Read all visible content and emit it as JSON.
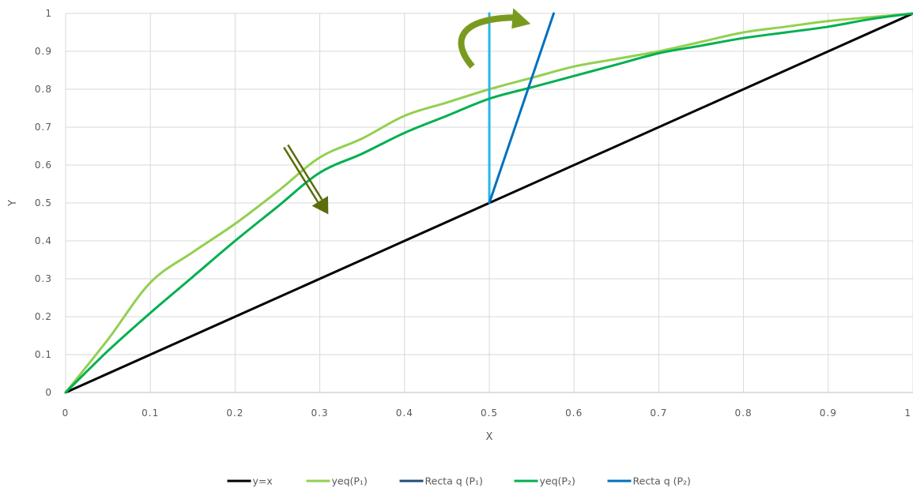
{
  "chart_data": {
    "type": "line",
    "title": "",
    "xlabel": "X",
    "ylabel": "Y",
    "xlim": [
      0,
      1
    ],
    "ylim": [
      0,
      1
    ],
    "x_ticks": [
      "0",
      "0.1",
      "0.2",
      "0.3",
      "0.4",
      "0.5",
      "0.6",
      "0.7",
      "0.8",
      "0.9",
      "1"
    ],
    "y_ticks": [
      "0",
      "0.1",
      "0.2",
      "0.3",
      "0.4",
      "0.5",
      "0.6",
      "0.7",
      "0.8",
      "0.9",
      "1"
    ],
    "grid": true,
    "legend_position": "bottom",
    "series": [
      {
        "name": "y=x",
        "color": "#000000",
        "x": [
          0,
          1
        ],
        "y": [
          0,
          1
        ]
      },
      {
        "name": "yeq(P1)",
        "color": "#92d050",
        "x": [
          0,
          0.05,
          0.1,
          0.15,
          0.2,
          0.25,
          0.3,
          0.35,
          0.4,
          0.45,
          0.5,
          0.55,
          0.6,
          0.65,
          0.7,
          0.75,
          0.8,
          0.85,
          0.9,
          0.95,
          1.0
        ],
        "y": [
          0,
          0.14,
          0.29,
          0.37,
          0.445,
          0.53,
          0.62,
          0.67,
          0.73,
          0.765,
          0.8,
          0.83,
          0.86,
          0.88,
          0.9,
          0.925,
          0.95,
          0.965,
          0.98,
          0.99,
          1.0
        ]
      },
      {
        "name": "Recta q (P1)",
        "color": "#29b6e8",
        "x": [
          0.5,
          0.5
        ],
        "y": [
          0.5,
          1
        ]
      },
      {
        "name": "yeq(P2)",
        "color": "#00b050",
        "x": [
          0,
          0.05,
          0.1,
          0.15,
          0.2,
          0.25,
          0.3,
          0.35,
          0.4,
          0.45,
          0.5,
          0.55,
          0.6,
          0.65,
          0.7,
          0.75,
          0.8,
          0.85,
          0.9,
          0.95,
          1.0
        ],
        "y": [
          0,
          0.11,
          0.21,
          0.305,
          0.4,
          0.49,
          0.58,
          0.63,
          0.685,
          0.73,
          0.775,
          0.805,
          0.835,
          0.865,
          0.895,
          0.915,
          0.935,
          0.95,
          0.965,
          0.985,
          1.0
        ]
      },
      {
        "name": "Recta q (P2)",
        "color": "#0070c0",
        "x": [
          0.5,
          0.576
        ],
        "y": [
          0.5,
          1
        ]
      }
    ],
    "legend": [
      {
        "name": "y=x",
        "color": "#000000"
      },
      {
        "name": "yeq(P₁)",
        "color": "#92d050"
      },
      {
        "name": "Recta q (P₁)",
        "color": "#1f4e79"
      },
      {
        "name": "yeq(P₂)",
        "color": "#00b050"
      },
      {
        "name": "Recta q (P₂)",
        "color": "#0070c0"
      }
    ],
    "annotations": [
      {
        "type": "straight-arrow",
        "color": "#5a6d0c",
        "from": [
          0.26,
          0.65
        ],
        "to": [
          0.31,
          0.47
        ]
      },
      {
        "type": "curved-arrow",
        "color": "#7a9a1f",
        "from": [
          0.48,
          0.86
        ],
        "to": [
          0.545,
          0.985
        ]
      }
    ]
  }
}
